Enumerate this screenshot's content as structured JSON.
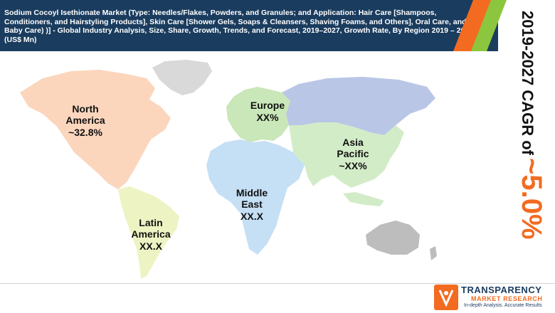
{
  "title": "Sodium Cocoyl Isethionate Market (Type: Needles/Flakes, Powders, and Granules; and Application: Hair Care [Shampoos, Conditioners, and Hairstyling Products], Skin Care [Shower Gels, Soaps & Cleansers, Shaving Foams, and Others], Oral Care, and Baby Care) )] - Global Industry Analysis, Size, Share, Growth, Trends, and Forecast, 2019–2027, Growth Rate, By Region 2019 – 2027 (US$ Mn)",
  "cagr": {
    "label": "2019-2027 CAGR of",
    "value": "~5.0%"
  },
  "regions": {
    "north_america": {
      "name_line1": "North",
      "name_line2": "America",
      "value": "~32.8%",
      "color": "#fbd6bd"
    },
    "europe": {
      "name_line1": "Europe",
      "value": "XX%",
      "color": "#c9e7b8"
    },
    "asia_pacific": {
      "name_line1": "Asia",
      "name_line2": "Pacific",
      "value": "~XX%",
      "color": "#d3ecc8"
    },
    "middle_east": {
      "name_line1": "Middle",
      "name_line2": "East",
      "value": "XX.X",
      "color": "#c5dff5"
    },
    "latin_america": {
      "name_line1": "Latin",
      "name_line2": "America",
      "value": "XX.X",
      "color": "#eef3c3"
    },
    "russia": {
      "color": "#b9c6e6"
    },
    "greenland": {
      "color": "#d9d9d9"
    },
    "australia": {
      "color": "#bdbdbd"
    }
  },
  "colors": {
    "header_bg": "#1a3c5e",
    "accent_orange": "#f26b21",
    "accent_green": "#8cc63f"
  },
  "logo": {
    "name": "TRANSPARENCY",
    "sub": "MARKET RESEARCH",
    "tagline": "In-depth Analysis. Accurate Results"
  }
}
